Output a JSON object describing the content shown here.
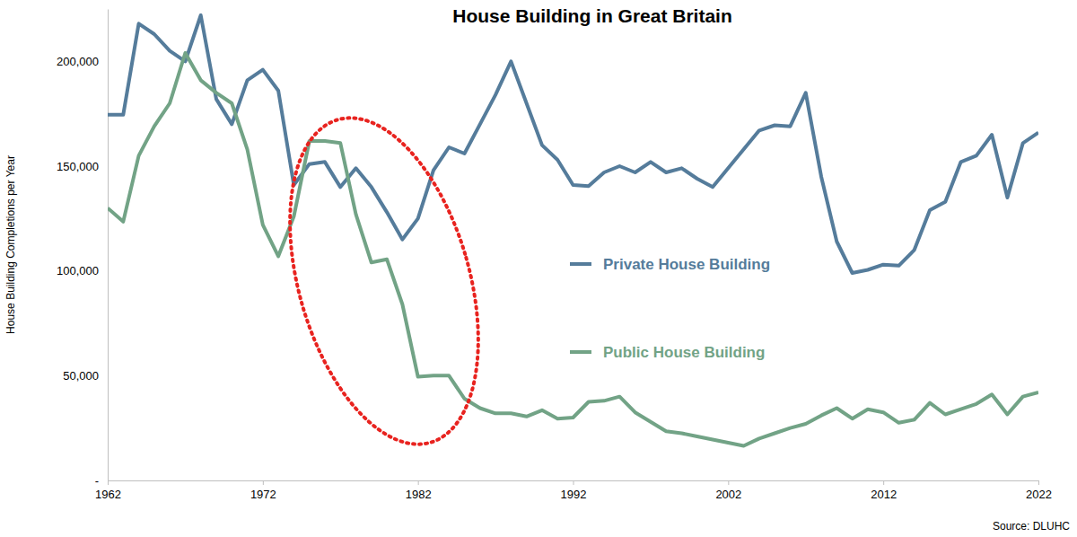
{
  "chart_data": {
    "type": "line",
    "title": "House Building in Great Britain",
    "y_label": "House Building Completions per Year",
    "source": "Source: DLUHC",
    "x": [
      1962,
      1963,
      1964,
      1965,
      1966,
      1967,
      1968,
      1969,
      1970,
      1971,
      1972,
      1973,
      1974,
      1975,
      1976,
      1977,
      1978,
      1979,
      1980,
      1981,
      1982,
      1983,
      1984,
      1985,
      1986,
      1987,
      1988,
      1989,
      1990,
      1991,
      1992,
      1993,
      1994,
      1995,
      1996,
      1997,
      1998,
      1999,
      2000,
      2001,
      2002,
      2003,
      2004,
      2005,
      2006,
      2007,
      2008,
      2009,
      2010,
      2011,
      2012,
      2013,
      2014,
      2015,
      2016,
      2017,
      2018,
      2019,
      2020,
      2021,
      2022
    ],
    "series": [
      {
        "name": "Private House Building",
        "color": "#557c9b",
        "values": [
          174500,
          174500,
          218000,
          213000,
          205000,
          200000,
          222000,
          182000,
          170000,
          191000,
          196000,
          186000,
          141000,
          151000,
          152000,
          140000,
          149000,
          140000,
          128000,
          115000,
          125000,
          148000,
          159000,
          156000,
          170000,
          184000,
          200000,
          180000,
          160000,
          153000,
          141000,
          140500,
          147000,
          150000,
          147000,
          152000,
          147000,
          149000,
          144000,
          140000,
          149000,
          158000,
          167000,
          169500,
          169000,
          185000,
          145000,
          114000,
          99000,
          100500,
          103000,
          102500,
          110000,
          129000,
          133000,
          152000,
          155000,
          165000,
          135000,
          161000,
          166000
        ]
      },
      {
        "name": "Public House Building",
        "color": "#72a386",
        "values": [
          130000,
          123500,
          155000,
          169000,
          180000,
          204000,
          191000,
          185000,
          180000,
          158000,
          122000,
          107000,
          126000,
          162000,
          162000,
          161000,
          127000,
          104000,
          105500,
          84000,
          49500,
          50000,
          50000,
          39000,
          34500,
          32000,
          32000,
          30500,
          33500,
          29500,
          30000,
          37500,
          38000,
          40000,
          32500,
          28000,
          23500,
          22500,
          21000,
          19500,
          18000,
          16500,
          20000,
          22500,
          25000,
          27000,
          31000,
          34500,
          29500,
          34000,
          32500,
          27500,
          29000,
          37000,
          31500,
          34000,
          36500,
          41000,
          31500,
          40000,
          42000
        ]
      }
    ],
    "xlim": [
      1962,
      2022
    ],
    "xticks": [
      1962,
      1972,
      1982,
      1992,
      2002,
      2012,
      2022
    ],
    "ylim": [
      0,
      225000
    ],
    "yticks": [
      {
        "value": 0,
        "label": "-"
      },
      {
        "value": 50000,
        "label": "50,000"
      },
      {
        "value": 100000,
        "label": "100,000"
      },
      {
        "value": 150000,
        "label": "150,000"
      },
      {
        "value": 200000,
        "label": "200,000"
      }
    ],
    "grid": false,
    "legend": "center"
  }
}
